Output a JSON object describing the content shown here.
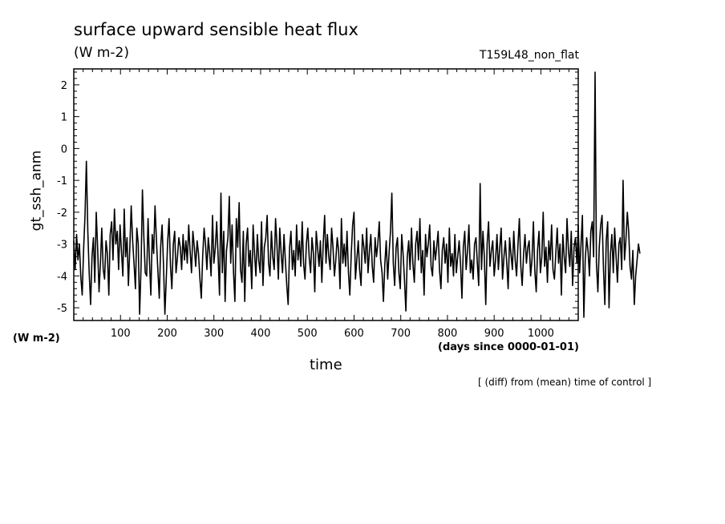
{
  "chart_data": {
    "type": "line",
    "title": "surface upward sensible heat flux",
    "units": "(W m-2)",
    "run_label": "T159L48_non_flat",
    "ylabel": "gt_ssh_anm",
    "yunits_label": "(W m-2)",
    "xlabel": "time",
    "xunits_label": "(days since 0000-01-01)",
    "note": "[ (diff) from (mean) time of control ]",
    "xlim": [
      0,
      1080
    ],
    "ylim": [
      -5.4,
      2.5
    ],
    "x_ticks": [
      100,
      200,
      300,
      400,
      500,
      600,
      700,
      800,
      900,
      1000
    ],
    "y_ticks": [
      -5,
      -4,
      -3,
      -2,
      -1,
      0,
      1,
      2
    ],
    "x_tick_labels": [
      "100",
      "200",
      "300",
      "400",
      "500",
      "600",
      "700",
      "800",
      "900",
      "1000"
    ],
    "y_tick_labels": [
      "-5",
      "-4",
      "-3",
      "-2",
      "-1",
      "0",
      "1",
      "2"
    ],
    "line_color": "#000000",
    "grid": false,
    "series": [
      {
        "x_start": 0,
        "x_step": 3,
        "values": [
          -2.9,
          -3.8,
          -2.7,
          -3.5,
          -3.0,
          -4.0,
          -4.6,
          -3.2,
          -2.1,
          -0.4,
          -2.6,
          -3.9,
          -4.9,
          -3.4,
          -2.8,
          -4.2,
          -2.0,
          -3.1,
          -4.5,
          -3.6,
          -2.5,
          -3.8,
          -4.1,
          -2.9,
          -3.3,
          -4.6,
          -2.7,
          -2.3,
          -3.5,
          -1.9,
          -3.0,
          -2.6,
          -3.8,
          -2.4,
          -3.2,
          -4.0,
          -1.9,
          -3.4,
          -2.8,
          -4.3,
          -3.1,
          -1.8,
          -2.9,
          -3.6,
          -4.4,
          -2.5,
          -3.0,
          -5.2,
          -3.7,
          -1.3,
          -2.8,
          -3.9,
          -4.0,
          -2.2,
          -3.5,
          -4.6,
          -2.7,
          -3.3,
          -1.8,
          -2.9,
          -3.8,
          -4.7,
          -3.1,
          -2.4,
          -3.6,
          -5.2,
          -4.1,
          -2.9,
          -2.2,
          -3.7,
          -4.4,
          -3.0,
          -2.6,
          -3.9,
          -3.4,
          -2.8,
          -3.1,
          -3.8,
          -2.7,
          -3.5,
          -2.9,
          -3.6,
          -2.4,
          -3.2,
          -3.9,
          -2.6,
          -3.1,
          -3.7,
          -2.9,
          -3.3,
          -4.1,
          -4.7,
          -3.4,
          -2.5,
          -3.0,
          -3.8,
          -2.8,
          -3.3,
          -4.0,
          -2.1,
          -3.6,
          -3.1,
          -2.3,
          -3.4,
          -4.6,
          -1.4,
          -3.9,
          -2.6,
          -4.8,
          -3.2,
          -2.8,
          -1.5,
          -3.6,
          -2.4,
          -3.9,
          -4.8,
          -2.2,
          -3.1,
          -1.7,
          -3.8,
          -4.2,
          -2.6,
          -4.8,
          -3.0,
          -2.5,
          -3.7,
          -3.2,
          -4.4,
          -2.4,
          -3.3,
          -4.0,
          -2.7,
          -3.5,
          -3.9,
          -2.3,
          -4.3,
          -3.1,
          -2.8,
          -2.1,
          -3.6,
          -4.0,
          -2.6,
          -3.4,
          -3.8,
          -2.2,
          -3.0,
          -4.1,
          -2.5,
          -3.3,
          -3.9,
          -2.7,
          -3.5,
          -4.3,
          -4.9,
          -3.1,
          -2.6,
          -3.8,
          -3.2,
          -4.0,
          -2.4,
          -3.5,
          -2.9,
          -3.7,
          -2.3,
          -3.6,
          -4.1,
          -3.0,
          -2.5,
          -3.4,
          -3.9,
          -2.8,
          -3.3,
          -4.5,
          -2.6,
          -3.1,
          -3.7,
          -2.9,
          -4.2,
          -3.0,
          -2.1,
          -3.6,
          -2.7,
          -3.4,
          -3.8,
          -2.5,
          -3.1,
          -4.0,
          -3.5,
          -2.8,
          -3.2,
          -4.4,
          -2.2,
          -3.6,
          -3.0,
          -3.7,
          -2.6,
          -3.9,
          -4.6,
          -3.3,
          -2.4,
          -2.0,
          -4.1,
          -3.5,
          -2.9,
          -3.8,
          -4.3,
          -2.7,
          -3.1,
          -3.6,
          -2.5,
          -3.9,
          -3.2,
          -2.7,
          -3.7,
          -4.2,
          -2.8,
          -3.4,
          -3.0,
          -2.3,
          -3.5,
          -3.9,
          -4.8,
          -3.6,
          -2.9,
          -4.1,
          -3.3,
          -2.6,
          -1.4,
          -3.6,
          -4.3,
          -3.1,
          -2.8,
          -3.9,
          -4.4,
          -2.7,
          -3.3,
          -4.1,
          -5.1,
          -3.4,
          -2.9,
          -3.8,
          -2.5,
          -3.6,
          -4.2,
          -3.0,
          -2.6,
          -3.5,
          -2.2,
          -3.9,
          -3.2,
          -4.6,
          -2.7,
          -3.4,
          -3.0,
          -2.4,
          -3.7,
          -4.0,
          -2.9,
          -3.5,
          -3.1,
          -2.6,
          -3.8,
          -4.4,
          -3.2,
          -2.8,
          -3.6,
          -3.0,
          -4.2,
          -2.5,
          -3.7,
          -3.3,
          -4.0,
          -2.7,
          -3.9,
          -3.4,
          -2.9,
          -3.6,
          -4.7,
          -3.1,
          -2.6,
          -3.8,
          -3.2,
          -2.4,
          -3.9,
          -3.5,
          -4.1,
          -3.0,
          -2.8,
          -3.6,
          -4.3,
          -1.1,
          -3.8,
          -2.6,
          -3.4,
          -4.9,
          -3.0,
          -2.3,
          -3.7,
          -3.2,
          -2.9,
          -4.0,
          -3.5,
          -2.7,
          -3.8,
          -3.1,
          -2.5,
          -4.1,
          -3.4,
          -2.9,
          -3.6,
          -4.4,
          -2.8,
          -3.3,
          -3.8,
          -2.6,
          -3.5,
          -4.0,
          -3.0,
          -2.2,
          -3.7,
          -4.3,
          -3.3,
          -2.7,
          -3.6,
          -3.1,
          -2.9,
          -4.0,
          -3.5,
          -2.3,
          -3.8,
          -4.5,
          -3.2,
          -2.6,
          -3.9,
          -3.4,
          -2.0,
          -3.7,
          -3.1,
          -4.2,
          -2.9,
          -3.5,
          -2.4,
          -3.8,
          -4.1,
          -3.3,
          -2.5,
          -3.6,
          -3.0,
          -4.6,
          -2.7,
          -3.4,
          -3.9,
          -2.2,
          -3.2,
          -3.7,
          -2.6,
          -4.3,
          -3.1,
          -2.8,
          -3.6,
          -2.4,
          -3.9,
          -3.0,
          -2.1,
          -5.3,
          -3.5,
          -2.8,
          -3.2,
          -4.0,
          -2.6,
          -2.3,
          -3.4,
          2.4,
          -3.6,
          -4.5,
          -3.1,
          -2.4,
          -2.1,
          -3.8,
          -4.9,
          -2.9,
          -2.3,
          -5.0,
          -3.3,
          -2.7,
          -3.9,
          -2.5,
          -3.4,
          -4.2,
          -3.0,
          -2.8,
          -3.8,
          -1.0,
          -3.5,
          -2.9,
          -2.0,
          -2.6,
          -3.7,
          -4.1,
          -3.2,
          -4.9,
          -4.0,
          -3.5,
          -3.0,
          -3.3
        ]
      }
    ]
  }
}
